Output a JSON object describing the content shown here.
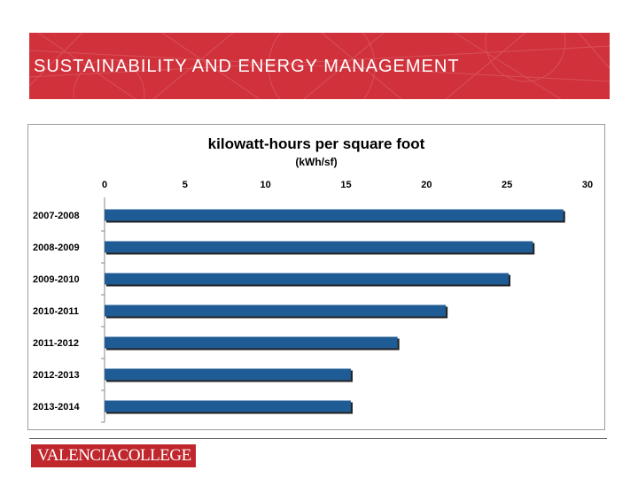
{
  "slide": {
    "title": "SUSTAINABILITY AND ENERGY MANAGEMENT",
    "logo_text": "VALENCIACOLLEGE",
    "banner_color": "#d0313b",
    "logo_color": "#c0272d"
  },
  "chart_data": {
    "type": "bar",
    "orientation": "horizontal",
    "title": "kilowatt-hours per square foot",
    "subtitle": "(kWh/sf)",
    "categories": [
      "2007-2008",
      "2008-2009",
      "2009-2010",
      "2010-2011",
      "2011-2012",
      "2012-2013",
      "2013-2014"
    ],
    "values": [
      28.5,
      26.6,
      25.1,
      21.2,
      18.2,
      15.3,
      15.3
    ],
    "xlim": [
      0,
      30
    ],
    "xticks": [
      0,
      5,
      10,
      15,
      20,
      25,
      30
    ],
    "x_axis_position": "top",
    "grid": false,
    "legend": "none",
    "bar_color": "#1f5b94"
  }
}
